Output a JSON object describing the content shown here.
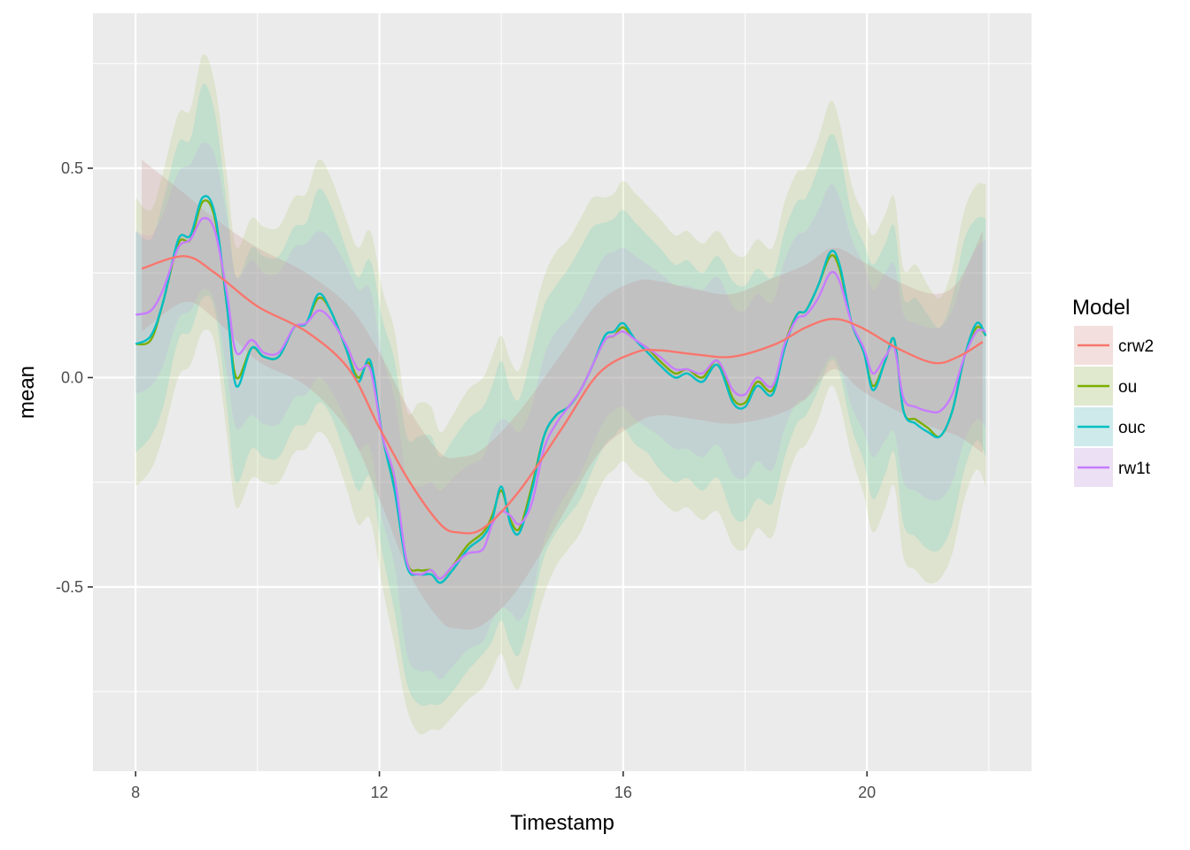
{
  "chart_data": {
    "type": "line",
    "xlabel": "Timestamp",
    "ylabel": "mean",
    "xlim": [
      7.3,
      22.7
    ],
    "ylim": [
      -0.94,
      0.87
    ],
    "x_ticks": [
      8,
      12,
      16,
      20
    ],
    "x_tick_labels": [
      "8",
      "12",
      "16",
      "20"
    ],
    "y_ticks": [
      -0.5,
      0.0,
      0.5
    ],
    "y_tick_labels": [
      "-0.5",
      "0.0",
      "0.5"
    ],
    "grid": true,
    "legend": {
      "title": "Model",
      "position": "right"
    },
    "series": [
      {
        "name": "crw2",
        "color": "#F8766D",
        "x": [
          8.1,
          8.8,
          9.3,
          10.0,
          10.8,
          11.5,
          12.0,
          12.5,
          13.0,
          13.3,
          13.7,
          14.3,
          15.0,
          15.6,
          16.2,
          16.6,
          17.2,
          17.8,
          18.5,
          19.0,
          19.45,
          19.9,
          20.5,
          21.1,
          21.5,
          21.9
        ],
        "y": [
          0.26,
          0.29,
          0.25,
          0.17,
          0.11,
          0.02,
          -0.12,
          -0.25,
          -0.35,
          -0.37,
          -0.36,
          -0.27,
          -0.12,
          0.01,
          0.06,
          0.065,
          0.055,
          0.05,
          0.08,
          0.12,
          0.14,
          0.12,
          0.07,
          0.035,
          0.05,
          0.085
        ],
        "lower": [
          0.11,
          0.18,
          0.14,
          0.04,
          -0.02,
          -0.13,
          -0.29,
          -0.47,
          -0.58,
          -0.6,
          -0.59,
          -0.5,
          -0.33,
          -0.18,
          -0.11,
          -0.09,
          -0.1,
          -0.11,
          -0.09,
          -0.05,
          0.02,
          -0.03,
          -0.08,
          -0.12,
          -0.14,
          -0.18
        ],
        "upper": [
          0.52,
          0.44,
          0.38,
          0.31,
          0.25,
          0.17,
          0.06,
          -0.08,
          -0.18,
          -0.19,
          -0.17,
          -0.08,
          0.06,
          0.18,
          0.23,
          0.23,
          0.21,
          0.2,
          0.24,
          0.27,
          0.31,
          0.28,
          0.23,
          0.2,
          0.23,
          0.35
        ]
      },
      {
        "name": "ou",
        "color": "#7CAE00",
        "x": [
          8.0,
          8.25,
          8.45,
          8.7,
          8.9,
          9.1,
          9.3,
          9.5,
          9.65,
          9.9,
          10.1,
          10.35,
          10.6,
          10.8,
          11.0,
          11.2,
          11.45,
          11.65,
          11.85,
          12.05,
          12.25,
          12.45,
          12.65,
          12.85,
          13.0,
          13.2,
          13.45,
          13.7,
          13.85,
          14.0,
          14.15,
          14.3,
          14.5,
          14.7,
          14.9,
          15.1,
          15.3,
          15.5,
          15.7,
          15.85,
          16.0,
          16.2,
          16.4,
          16.6,
          16.85,
          17.05,
          17.3,
          17.55,
          17.8,
          18.0,
          18.2,
          18.45,
          18.65,
          18.85,
          19.0,
          19.2,
          19.4,
          19.55,
          19.75,
          19.95,
          20.1,
          20.3,
          20.45,
          20.6,
          20.8,
          21.0,
          21.2,
          21.4,
          21.6,
          21.8,
          21.95
        ],
        "y": [
          0.08,
          0.09,
          0.18,
          0.32,
          0.33,
          0.42,
          0.38,
          0.17,
          0.0,
          0.07,
          0.05,
          0.05,
          0.12,
          0.13,
          0.19,
          0.16,
          0.07,
          0.0,
          0.03,
          -0.14,
          -0.26,
          -0.44,
          -0.46,
          -0.46,
          -0.48,
          -0.45,
          -0.4,
          -0.37,
          -0.33,
          -0.27,
          -0.34,
          -0.36,
          -0.26,
          -0.14,
          -0.09,
          -0.07,
          -0.03,
          0.03,
          0.09,
          0.1,
          0.12,
          0.09,
          0.07,
          0.04,
          0.01,
          0.02,
          0.0,
          0.04,
          -0.05,
          -0.06,
          -0.01,
          -0.03,
          0.08,
          0.15,
          0.16,
          0.22,
          0.29,
          0.26,
          0.13,
          0.06,
          -0.02,
          0.04,
          0.09,
          -0.08,
          -0.1,
          -0.12,
          -0.14,
          -0.08,
          0.05,
          0.12,
          0.1
        ],
        "lower": [
          -0.26,
          -0.22,
          -0.14,
          0.0,
          0.03,
          0.11,
          0.08,
          -0.14,
          -0.31,
          -0.24,
          -0.25,
          -0.25,
          -0.18,
          -0.17,
          -0.13,
          -0.16,
          -0.26,
          -0.35,
          -0.34,
          -0.5,
          -0.64,
          -0.79,
          -0.85,
          -0.84,
          -0.84,
          -0.81,
          -0.77,
          -0.74,
          -0.7,
          -0.66,
          -0.72,
          -0.74,
          -0.63,
          -0.52,
          -0.45,
          -0.41,
          -0.37,
          -0.3,
          -0.24,
          -0.22,
          -0.2,
          -0.23,
          -0.25,
          -0.29,
          -0.32,
          -0.31,
          -0.34,
          -0.32,
          -0.4,
          -0.41,
          -0.36,
          -0.38,
          -0.26,
          -0.18,
          -0.16,
          -0.1,
          -0.02,
          -0.06,
          -0.19,
          -0.28,
          -0.37,
          -0.31,
          -0.26,
          -0.43,
          -0.46,
          -0.49,
          -0.48,
          -0.42,
          -0.29,
          -0.22,
          -0.26
        ],
        "upper": [
          0.43,
          0.4,
          0.49,
          0.63,
          0.64,
          0.77,
          0.7,
          0.48,
          0.31,
          0.38,
          0.36,
          0.36,
          0.43,
          0.44,
          0.52,
          0.48,
          0.38,
          0.31,
          0.35,
          0.21,
          0.11,
          -0.08,
          -0.06,
          -0.07,
          -0.13,
          -0.09,
          -0.03,
          0.0,
          0.05,
          0.1,
          0.04,
          0.02,
          0.13,
          0.24,
          0.3,
          0.33,
          0.38,
          0.43,
          0.43,
          0.44,
          0.47,
          0.44,
          0.41,
          0.38,
          0.34,
          0.35,
          0.32,
          0.35,
          0.3,
          0.29,
          0.33,
          0.31,
          0.42,
          0.49,
          0.5,
          0.57,
          0.66,
          0.61,
          0.46,
          0.39,
          0.34,
          0.39,
          0.43,
          0.26,
          0.27,
          0.22,
          0.19,
          0.26,
          0.4,
          0.46,
          0.46
        ]
      },
      {
        "name": "ouc",
        "color": "#00BFC4",
        "x": [
          8.0,
          8.25,
          8.45,
          8.7,
          8.9,
          9.1,
          9.3,
          9.5,
          9.65,
          9.9,
          10.1,
          10.35,
          10.6,
          10.8,
          11.0,
          11.2,
          11.45,
          11.65,
          11.85,
          12.05,
          12.25,
          12.45,
          12.65,
          12.85,
          13.0,
          13.2,
          13.45,
          13.7,
          13.85,
          14.0,
          14.15,
          14.3,
          14.5,
          14.7,
          14.9,
          15.1,
          15.3,
          15.5,
          15.7,
          15.85,
          16.0,
          16.2,
          16.4,
          16.6,
          16.85,
          17.05,
          17.3,
          17.55,
          17.8,
          18.0,
          18.2,
          18.45,
          18.65,
          18.85,
          19.0,
          19.2,
          19.4,
          19.55,
          19.75,
          19.95,
          20.1,
          20.3,
          20.45,
          20.6,
          20.8,
          21.0,
          21.2,
          21.4,
          21.6,
          21.8,
          21.95
        ],
        "y": [
          0.08,
          0.1,
          0.18,
          0.33,
          0.34,
          0.43,
          0.39,
          0.17,
          -0.02,
          0.07,
          0.05,
          0.05,
          0.12,
          0.13,
          0.2,
          0.16,
          0.07,
          -0.01,
          0.04,
          -0.14,
          -0.27,
          -0.45,
          -0.47,
          -0.47,
          -0.49,
          -0.46,
          -0.41,
          -0.38,
          -0.34,
          -0.26,
          -0.35,
          -0.37,
          -0.27,
          -0.14,
          -0.09,
          -0.07,
          -0.03,
          0.03,
          0.1,
          0.11,
          0.13,
          0.09,
          0.06,
          0.03,
          0.0,
          0.01,
          -0.01,
          0.03,
          -0.06,
          -0.07,
          -0.02,
          -0.04,
          0.07,
          0.15,
          0.16,
          0.22,
          0.3,
          0.27,
          0.13,
          0.06,
          -0.03,
          0.04,
          0.09,
          -0.08,
          -0.11,
          -0.13,
          -0.14,
          -0.08,
          0.05,
          0.13,
          0.1
        ],
        "lower": [
          -0.18,
          -0.14,
          -0.07,
          0.09,
          0.11,
          0.19,
          0.16,
          -0.07,
          -0.25,
          -0.17,
          -0.19,
          -0.19,
          -0.12,
          -0.11,
          -0.06,
          -0.09,
          -0.19,
          -0.27,
          -0.24,
          -0.42,
          -0.56,
          -0.73,
          -0.78,
          -0.78,
          -0.78,
          -0.75,
          -0.7,
          -0.66,
          -0.63,
          -0.58,
          -0.64,
          -0.66,
          -0.55,
          -0.43,
          -0.37,
          -0.33,
          -0.29,
          -0.22,
          -0.16,
          -0.14,
          -0.12,
          -0.16,
          -0.18,
          -0.22,
          -0.25,
          -0.24,
          -0.27,
          -0.24,
          -0.33,
          -0.34,
          -0.29,
          -0.3,
          -0.19,
          -0.11,
          -0.09,
          -0.03,
          0.04,
          0.01,
          -0.12,
          -0.2,
          -0.29,
          -0.23,
          -0.18,
          -0.35,
          -0.38,
          -0.41,
          -0.41,
          -0.35,
          -0.22,
          -0.15,
          -0.19
        ],
        "upper": [
          0.35,
          0.33,
          0.42,
          0.56,
          0.57,
          0.7,
          0.63,
          0.41,
          0.24,
          0.31,
          0.29,
          0.29,
          0.36,
          0.37,
          0.45,
          0.41,
          0.31,
          0.24,
          0.28,
          0.14,
          0.04,
          -0.14,
          -0.14,
          -0.14,
          -0.19,
          -0.15,
          -0.1,
          -0.07,
          -0.02,
          0.04,
          -0.03,
          -0.05,
          0.06,
          0.17,
          0.22,
          0.26,
          0.31,
          0.36,
          0.37,
          0.38,
          0.4,
          0.37,
          0.34,
          0.31,
          0.27,
          0.28,
          0.25,
          0.29,
          0.23,
          0.22,
          0.26,
          0.24,
          0.35,
          0.42,
          0.43,
          0.5,
          0.58,
          0.54,
          0.39,
          0.32,
          0.27,
          0.32,
          0.36,
          0.19,
          0.19,
          0.15,
          0.12,
          0.19,
          0.33,
          0.38,
          0.38
        ]
      },
      {
        "name": "rw1t",
        "color": "#C77CFF",
        "x": [
          8.0,
          8.25,
          8.45,
          8.7,
          8.9,
          9.1,
          9.3,
          9.5,
          9.65,
          9.9,
          10.1,
          10.35,
          10.6,
          10.8,
          11.0,
          11.2,
          11.45,
          11.65,
          11.85,
          12.05,
          12.25,
          12.45,
          12.65,
          12.85,
          13.0,
          13.2,
          13.45,
          13.7,
          13.85,
          14.0,
          14.15,
          14.3,
          14.5,
          14.7,
          14.9,
          15.1,
          15.3,
          15.5,
          15.7,
          15.85,
          16.0,
          16.2,
          16.4,
          16.6,
          16.85,
          17.05,
          17.3,
          17.55,
          17.8,
          18.0,
          18.2,
          18.45,
          18.65,
          18.85,
          19.0,
          19.2,
          19.4,
          19.55,
          19.75,
          19.95,
          20.1,
          20.3,
          20.45,
          20.6,
          20.8,
          21.0,
          21.2,
          21.4,
          21.6,
          21.8,
          21.95
        ],
        "y": [
          0.15,
          0.16,
          0.21,
          0.31,
          0.33,
          0.38,
          0.35,
          0.2,
          0.06,
          0.09,
          0.06,
          0.06,
          0.12,
          0.13,
          0.16,
          0.14,
          0.08,
          0.02,
          0.02,
          -0.14,
          -0.24,
          -0.44,
          -0.47,
          -0.46,
          -0.48,
          -0.45,
          -0.42,
          -0.41,
          -0.35,
          -0.32,
          -0.33,
          -0.35,
          -0.3,
          -0.17,
          -0.11,
          -0.07,
          -0.03,
          0.03,
          0.09,
          0.1,
          0.11,
          0.09,
          0.07,
          0.05,
          0.02,
          0.02,
          0.01,
          0.04,
          -0.03,
          -0.04,
          0.0,
          -0.02,
          0.08,
          0.14,
          0.15,
          0.19,
          0.25,
          0.23,
          0.13,
          0.07,
          0.01,
          0.05,
          0.07,
          -0.05,
          -0.07,
          -0.08,
          -0.08,
          -0.04,
          0.05,
          0.11,
          0.11
        ],
        "lower": [
          -0.04,
          -0.02,
          0.03,
          0.14,
          0.16,
          0.21,
          0.18,
          0.01,
          -0.12,
          -0.09,
          -0.11,
          -0.11,
          -0.05,
          -0.04,
          0.0,
          -0.03,
          -0.1,
          -0.17,
          -0.17,
          -0.34,
          -0.45,
          -0.66,
          -0.7,
          -0.7,
          -0.72,
          -0.69,
          -0.65,
          -0.63,
          -0.58,
          -0.55,
          -0.56,
          -0.58,
          -0.52,
          -0.39,
          -0.32,
          -0.27,
          -0.23,
          -0.16,
          -0.1,
          -0.08,
          -0.07,
          -0.1,
          -0.12,
          -0.14,
          -0.17,
          -0.17,
          -0.19,
          -0.16,
          -0.23,
          -0.24,
          -0.2,
          -0.22,
          -0.12,
          -0.06,
          -0.05,
          0.0,
          0.05,
          0.03,
          -0.07,
          -0.13,
          -0.19,
          -0.15,
          -0.13,
          -0.25,
          -0.27,
          -0.29,
          -0.29,
          -0.25,
          -0.15,
          -0.1,
          -0.12
        ],
        "upper": [
          0.35,
          0.34,
          0.39,
          0.49,
          0.51,
          0.56,
          0.53,
          0.38,
          0.24,
          0.28,
          0.25,
          0.25,
          0.31,
          0.32,
          0.35,
          0.33,
          0.27,
          0.21,
          0.21,
          0.05,
          -0.05,
          -0.24,
          -0.26,
          -0.25,
          -0.27,
          -0.24,
          -0.21,
          -0.19,
          -0.13,
          -0.1,
          -0.11,
          -0.13,
          -0.07,
          0.05,
          0.11,
          0.14,
          0.18,
          0.24,
          0.29,
          0.3,
          0.31,
          0.29,
          0.27,
          0.25,
          0.22,
          0.22,
          0.21,
          0.24,
          0.17,
          0.16,
          0.2,
          0.18,
          0.28,
          0.34,
          0.35,
          0.4,
          0.46,
          0.43,
          0.33,
          0.27,
          0.21,
          0.25,
          0.27,
          0.15,
          0.13,
          0.12,
          0.12,
          0.16,
          0.25,
          0.31,
          0.33
        ]
      }
    ]
  }
}
